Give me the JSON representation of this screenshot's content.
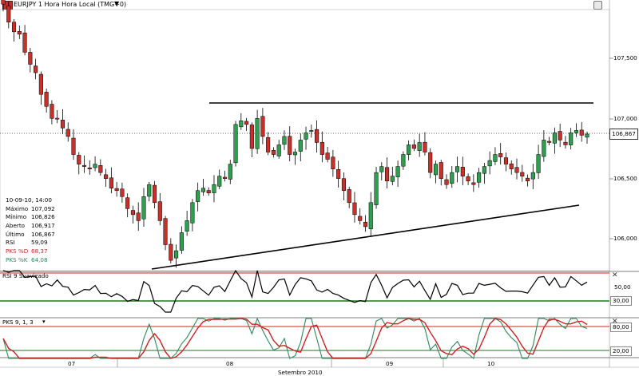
{
  "window": {
    "title": "EURJPY 1 Hora Hora Local (TMG+0)",
    "caret": "▼"
  },
  "info_panel": {
    "datetime": "10-09-10, 14:00",
    "rows": [
      {
        "label": "Máximo",
        "value": "107,092"
      },
      {
        "label": "Mínimo",
        "value": "106,826"
      },
      {
        "label": "Aberto",
        "value": "106,917"
      },
      {
        "label": "Último",
        "value": "106,867"
      },
      {
        "label": "RSI",
        "value": "59,09"
      },
      {
        "label": "PKS %D",
        "value": "68,37",
        "color": "#c0302a"
      },
      {
        "label": "PKS %K",
        "value": "64,08",
        "color": "#2a8a5a"
      }
    ]
  },
  "price_axis": {
    "ticks": [
      "107,500",
      "107,000",
      "106,500",
      "106,000"
    ],
    "current": "106,867"
  },
  "rsi_panel": {
    "label": "RSI 9 Suavizado",
    "ticks": [
      "50,00",
      "30,00"
    ],
    "close": "✕"
  },
  "pks_panel": {
    "label": "PKS 9, 1, 3",
    "ticks": [
      "80,00",
      "20,00"
    ],
    "close": "✕"
  },
  "time_axis": {
    "day_labels": [
      "07",
      "08",
      "09",
      "10"
    ],
    "month_label": "Setembro 2010"
  },
  "colors": {
    "up": "#2e9e4f",
    "down": "#c8302a",
    "rsi_line": "#000000",
    "rsi_level": "#1a7a1a",
    "stoch_k": "#2a8a5a",
    "stoch_d": "#d42020",
    "overbought": "#d42020",
    "oversold": "#1a7a1a"
  }
}
